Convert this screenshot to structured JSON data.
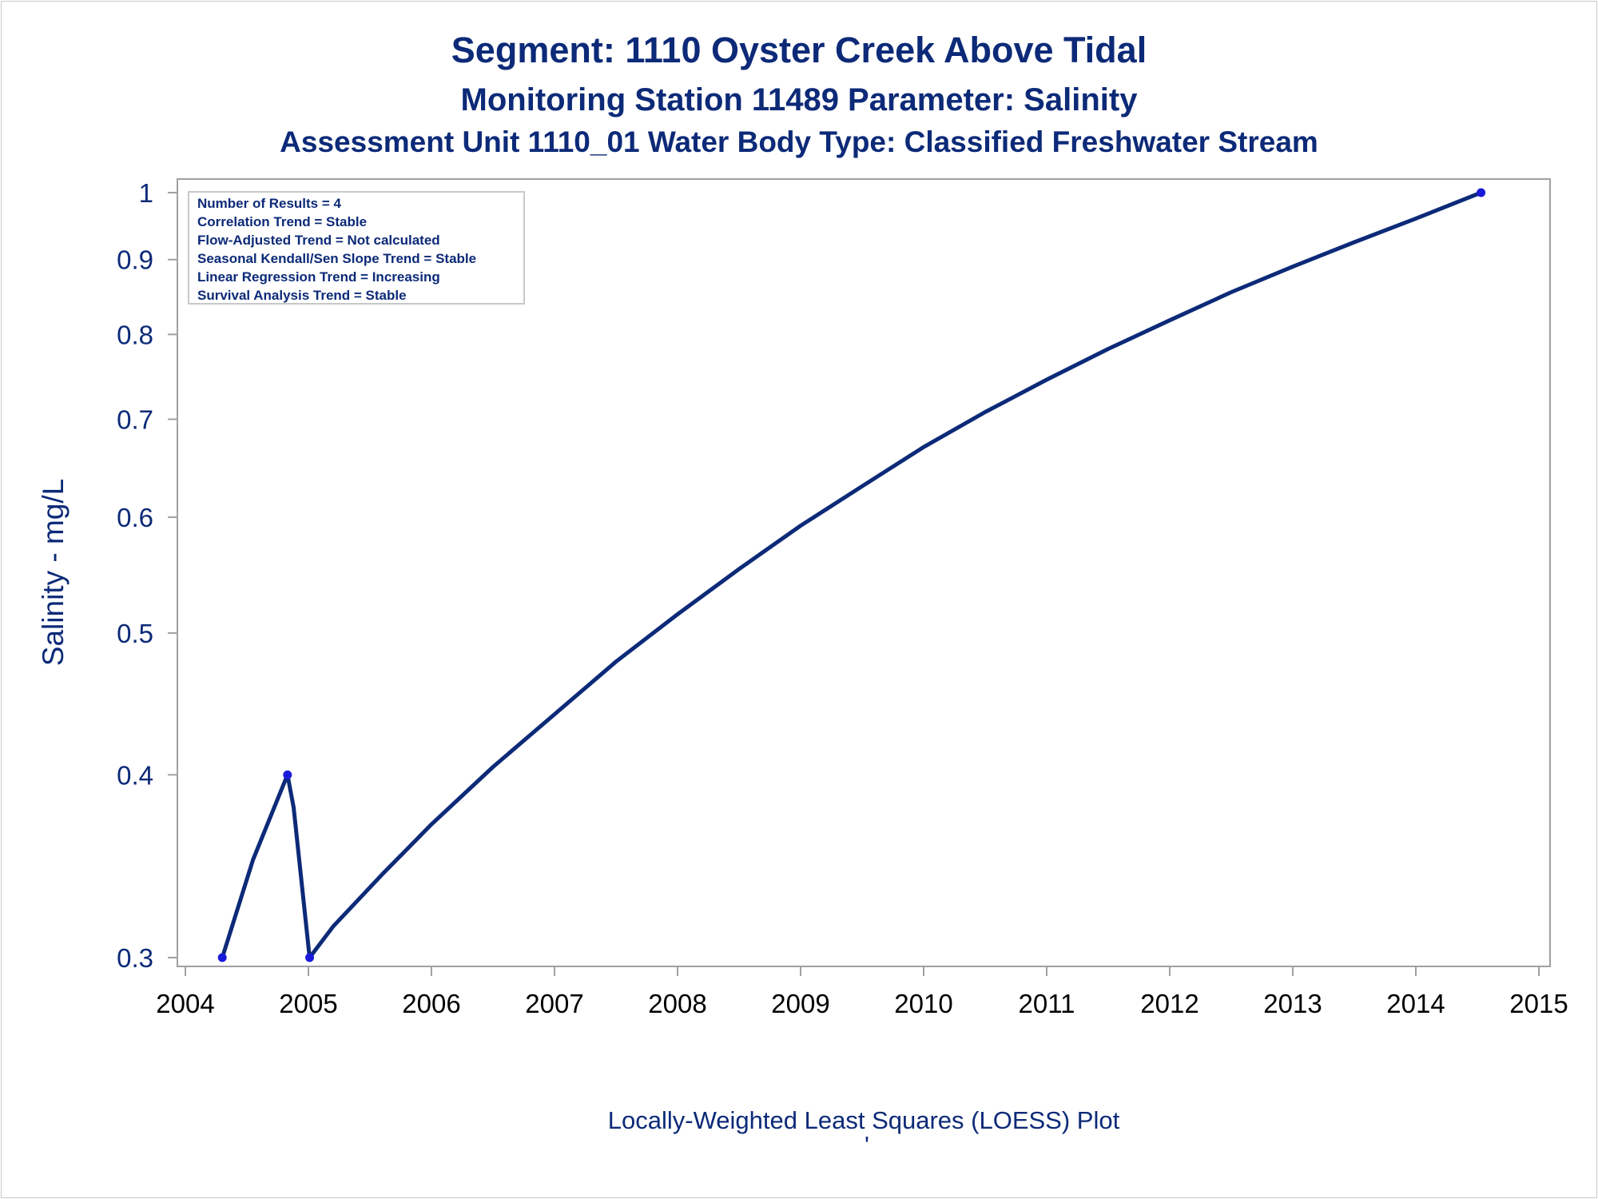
{
  "chart_data": {
    "type": "line",
    "title": "Segment: 1110  Oyster Creek Above Tidal",
    "subtitle_1": "Monitoring Station 11489 Parameter: Salinity",
    "subtitle_2": "Assessment Unit 1110_01   Water Body Type: Classified Freshwater Stream",
    "xlabel": "",
    "ylabel": "Salinity - mg/L",
    "footnote": "Locally-Weighted Least Squares (LOESS) Plot",
    "footnote_mark": "'",
    "x_ticks": [
      "2004",
      "2005",
      "2006",
      "2007",
      "2008",
      "2009",
      "2010",
      "2011",
      "2012",
      "2013",
      "2014",
      "2015"
    ],
    "y_ticks": [
      "0.3",
      "0.4",
      "0.5",
      "0.6",
      "0.7",
      "0.8",
      "0.9",
      "1"
    ],
    "xlim": [
      2004.0,
      2015.1
    ],
    "ylim": [
      0.3,
      1.0
    ],
    "y_scale": "log",
    "grid": false,
    "points": [
      {
        "x": 2004.3,
        "y": 0.3
      },
      {
        "x": 2004.83,
        "y": 0.4
      },
      {
        "x": 2005.01,
        "y": 0.3
      },
      {
        "x": 2014.53,
        "y": 1.0
      }
    ],
    "loess_curve": [
      {
        "x": 2004.3,
        "y": 0.3
      },
      {
        "x": 2004.55,
        "y": 0.35
      },
      {
        "x": 2004.83,
        "y": 0.4
      },
      {
        "x": 2004.88,
        "y": 0.38
      },
      {
        "x": 2005.01,
        "y": 0.3
      },
      {
        "x": 2005.2,
        "y": 0.315
      },
      {
        "x": 2005.6,
        "y": 0.342
      },
      {
        "x": 2006.0,
        "y": 0.37
      },
      {
        "x": 2006.5,
        "y": 0.405
      },
      {
        "x": 2007.0,
        "y": 0.44
      },
      {
        "x": 2007.5,
        "y": 0.478
      },
      {
        "x": 2008.0,
        "y": 0.515
      },
      {
        "x": 2008.5,
        "y": 0.553
      },
      {
        "x": 2009.0,
        "y": 0.592
      },
      {
        "x": 2009.5,
        "y": 0.63
      },
      {
        "x": 2010.0,
        "y": 0.67
      },
      {
        "x": 2010.5,
        "y": 0.708
      },
      {
        "x": 2011.0,
        "y": 0.745
      },
      {
        "x": 2011.5,
        "y": 0.782
      },
      {
        "x": 2012.0,
        "y": 0.818
      },
      {
        "x": 2012.5,
        "y": 0.855
      },
      {
        "x": 2013.0,
        "y": 0.89
      },
      {
        "x": 2013.5,
        "y": 0.925
      },
      {
        "x": 2014.0,
        "y": 0.96
      },
      {
        "x": 2014.53,
        "y": 1.0
      }
    ],
    "colors": {
      "line": "#0c2a78",
      "marker": "#1a1adc",
      "text": "#0c2a78",
      "frame": "#a0a0a0"
    }
  },
  "inset": {
    "lines": [
      "Number of Results = 4",
      "Correlation Trend = Stable",
      "Flow-Adjusted Trend = Not calculated",
      "Seasonal Kendall/Sen Slope Trend = Stable",
      "Linear Regression Trend = Increasing",
      "Survival Analysis Trend = Stable"
    ]
  }
}
